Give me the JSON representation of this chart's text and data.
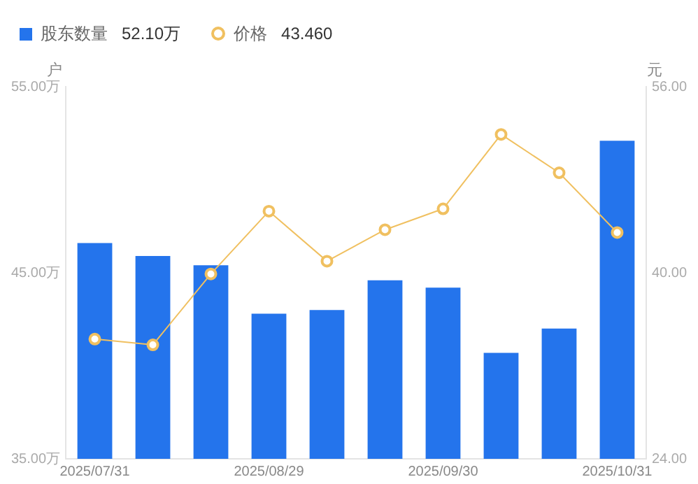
{
  "chart_data": {
    "type": "bar",
    "ylabel": "户",
    "y2label": "元",
    "categories": [
      "2025/07/31",
      null,
      null,
      "2025/08/29",
      null,
      null,
      "2025/09/30",
      null,
      null,
      "2025/10/31"
    ],
    "series": [
      {
        "name": "股东数量",
        "color": "#2474ec",
        "values": [
          46.6,
          45.9,
          45.4,
          42.8,
          43.0,
          44.6,
          44.2,
          40.7,
          42.0,
          52.1
        ]
      },
      {
        "name": "价格",
        "type": "line",
        "axis": "y2",
        "color": "#f0c060",
        "marker": "circle",
        "values": [
          34.3,
          33.8,
          39.9,
          45.3,
          41.0,
          43.7,
          45.5,
          51.9,
          48.6,
          43.46
        ]
      }
    ],
    "ylim": [
      35,
      55
    ],
    "yticks": [
      {
        "value": 35,
        "label": "35.00万"
      },
      {
        "value": 45,
        "label": "45.00万"
      },
      {
        "value": 55,
        "label": "55.00万"
      }
    ],
    "y2lim": [
      24,
      56
    ],
    "y2ticks": [
      {
        "value": 24,
        "label": "24.00"
      },
      {
        "value": 40,
        "label": "40.00"
      },
      {
        "value": 56,
        "label": "56.00"
      }
    ],
    "annotations": [
      "52.10万",
      "43.460"
    ],
    "legend": "top left",
    "grid": false
  }
}
